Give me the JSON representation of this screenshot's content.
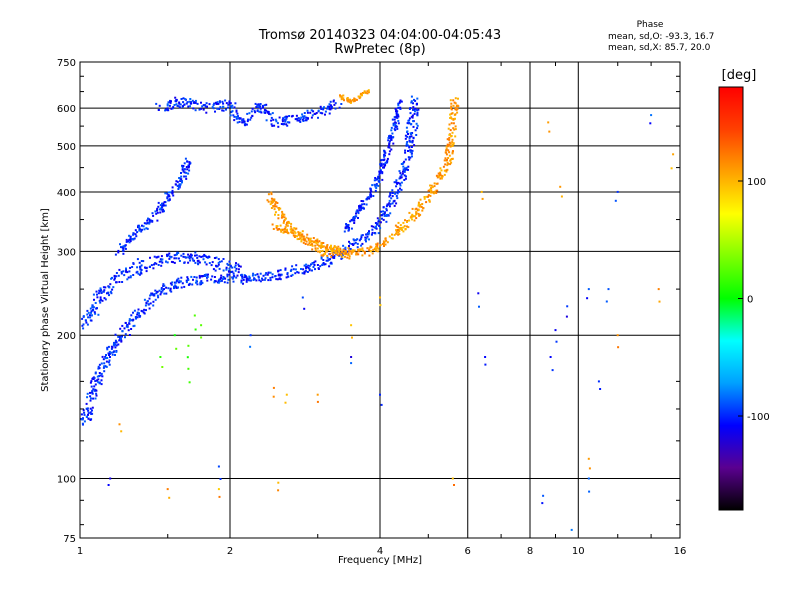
{
  "chart_data": {
    "type": "scatter",
    "title": "Tromsø 20140323 04:04:00-04:05:43",
    "subtitle": "RwPretec (8p)",
    "xlabel": "Frequency [MHz]",
    "ylabel": "Stationary phase Virtual Height [km]",
    "xscale": "log",
    "yscale": "log",
    "xlim": [
      1,
      16
    ],
    "ylim": [
      75,
      750
    ],
    "xticks": [
      1,
      2,
      4,
      6,
      8,
      10,
      16
    ],
    "xtick_labels": [
      "1",
      "2",
      "4",
      "6",
      "8",
      "10",
      "16"
    ],
    "yticks": [
      75,
      100,
      200,
      300,
      400,
      500,
      600,
      750
    ],
    "ytick_labels": [
      "75",
      "100",
      "200",
      "300",
      "400",
      "500",
      "600",
      "750"
    ],
    "grid": true,
    "phase_legend": {
      "title": "Phase",
      "o_mode": "mean, sd,O: -93.3, 16.7",
      "x_mode": "mean, sd,X:  85.7, 20.0"
    },
    "colorbar": {
      "label": "[deg]",
      "range": [
        -180,
        180
      ],
      "ticks": [
        100,
        0,
        -100
      ],
      "tick_labels": [
        "100",
        "0",
        "-100"
      ],
      "colors": [
        "#000000",
        "#5a0090",
        "#0000ff",
        "#00a0ff",
        "#00ffff",
        "#00ff00",
        "#80ff00",
        "#ffff00",
        "#ffa000",
        "#ff4000",
        "#ff0000"
      ]
    },
    "series": [
      {
        "mode": "O",
        "color_phase": -100,
        "traces": [
          {
            "points": [
              [
                1.02,
                130
              ],
              [
                1.05,
                145
              ],
              [
                1.08,
                160
              ],
              [
                1.12,
                175
              ],
              [
                1.18,
                190
              ],
              [
                1.25,
                210
              ],
              [
                1.32,
                225
              ],
              [
                1.4,
                240
              ],
              [
                1.5,
                252
              ],
              [
                1.6,
                258
              ],
              [
                1.75,
                262
              ],
              [
                1.9,
                262
              ],
              [
                2.05,
                262
              ],
              [
                2.3,
                265
              ],
              [
                2.6,
                270
              ],
              [
                2.9,
                278
              ],
              [
                3.2,
                290
              ],
              [
                3.5,
                305
              ],
              [
                3.8,
                325
              ],
              [
                4.0,
                345
              ],
              [
                4.2,
                375
              ],
              [
                4.35,
                410
              ],
              [
                4.5,
                460
              ],
              [
                4.6,
                520
              ],
              [
                4.7,
                600
              ],
              [
                4.72,
                630
              ]
            ],
            "spread": 5
          },
          {
            "points": [
              [
                1.02,
                210
              ],
              [
                1.1,
                240
              ],
              [
                1.2,
                265
              ],
              [
                1.35,
                282
              ],
              [
                1.5,
                290
              ],
              [
                1.7,
                290
              ],
              [
                1.9,
                282
              ],
              [
                2.1,
                275
              ]
            ],
            "spread": 6
          },
          {
            "points": [
              [
                1.2,
                300
              ],
              [
                1.3,
                330
              ],
              [
                1.4,
                350
              ],
              [
                1.5,
                390
              ],
              [
                1.6,
                420
              ],
              [
                1.65,
                470
              ]
            ],
            "spread": 4
          },
          {
            "points": [
              [
                1.45,
                600
              ],
              [
                1.6,
                620
              ],
              [
                1.8,
                600
              ],
              [
                2.0,
                610
              ],
              [
                2.1,
                560
              ],
              [
                2.3,
                600
              ],
              [
                2.5,
                560
              ],
              [
                2.7,
                570
              ],
              [
                3.0,
                585
              ],
              [
                3.3,
                615
              ]
            ],
            "spread": 5
          },
          {
            "points": [
              [
                3.4,
                330
              ],
              [
                3.6,
                360
              ],
              [
                3.8,
                390
              ],
              [
                4.0,
                430
              ],
              [
                4.15,
                490
              ],
              [
                4.3,
                560
              ],
              [
                4.4,
                620
              ]
            ],
            "spread": 3
          }
        ],
        "scatter": [
          [
            1.15,
            100
          ],
          [
            1.9,
            106
          ],
          [
            2.2,
            200
          ],
          [
            2.8,
            240
          ],
          [
            3.5,
            180
          ],
          [
            4.0,
            150
          ],
          [
            6.3,
            245
          ],
          [
            6.5,
            180
          ],
          [
            8.5,
            92
          ],
          [
            9.5,
            230
          ],
          [
            10.5,
            250
          ],
          [
            11.5,
            250
          ],
          [
            9.0,
            205
          ],
          [
            8.8,
            180
          ],
          [
            11.0,
            160
          ],
          [
            12.0,
            400
          ],
          [
            14.0,
            580
          ],
          [
            10.5,
            100
          ],
          [
            9.7,
            78
          ]
        ]
      },
      {
        "mode": "X",
        "color_phase": 110,
        "traces": [
          {
            "points": [
              [
                2.4,
                400
              ],
              [
                2.5,
                360
              ],
              [
                2.7,
                330
              ],
              [
                2.9,
                310
              ],
              [
                3.1,
                300
              ],
              [
                3.4,
                295
              ],
              [
                3.8,
                300
              ],
              [
                4.1,
                315
              ],
              [
                4.4,
                335
              ],
              [
                4.7,
                360
              ],
              [
                5.0,
                390
              ],
              [
                5.3,
                430
              ],
              [
                5.5,
                470
              ],
              [
                5.6,
                550
              ],
              [
                5.65,
                620
              ]
            ],
            "spread": 4
          },
          {
            "points": [
              [
                2.45,
                340
              ],
              [
                2.6,
                330
              ],
              [
                2.8,
                320
              ],
              [
                3.0,
                312
              ],
              [
                3.2,
                305
              ],
              [
                3.5,
                300
              ]
            ],
            "spread": 3
          },
          {
            "points": [
              [
                3.3,
                640
              ],
              [
                3.5,
                620
              ],
              [
                3.8,
                650
              ]
            ],
            "spread": 2
          }
        ],
        "scatter": [
          [
            1.2,
            130
          ],
          [
            1.5,
            95
          ],
          [
            1.9,
            95
          ],
          [
            2.45,
            155
          ],
          [
            2.5,
            98
          ],
          [
            3.0,
            150
          ],
          [
            5.6,
            100
          ],
          [
            6.4,
            400
          ],
          [
            8.7,
            560
          ],
          [
            9.2,
            410
          ],
          [
            10.5,
            110
          ],
          [
            12.0,
            200
          ],
          [
            14.5,
            250
          ],
          [
            15.5,
            480
          ],
          [
            4.0,
            240
          ],
          [
            3.5,
            210
          ],
          [
            2.6,
            150
          ]
        ]
      },
      {
        "mode": "other",
        "color_phase": 20,
        "scatter": [
          [
            1.55,
            200
          ],
          [
            1.65,
            190
          ],
          [
            1.75,
            210
          ],
          [
            1.45,
            180
          ],
          [
            1.65,
            170
          ],
          [
            1.7,
            220
          ]
        ]
      }
    ]
  }
}
